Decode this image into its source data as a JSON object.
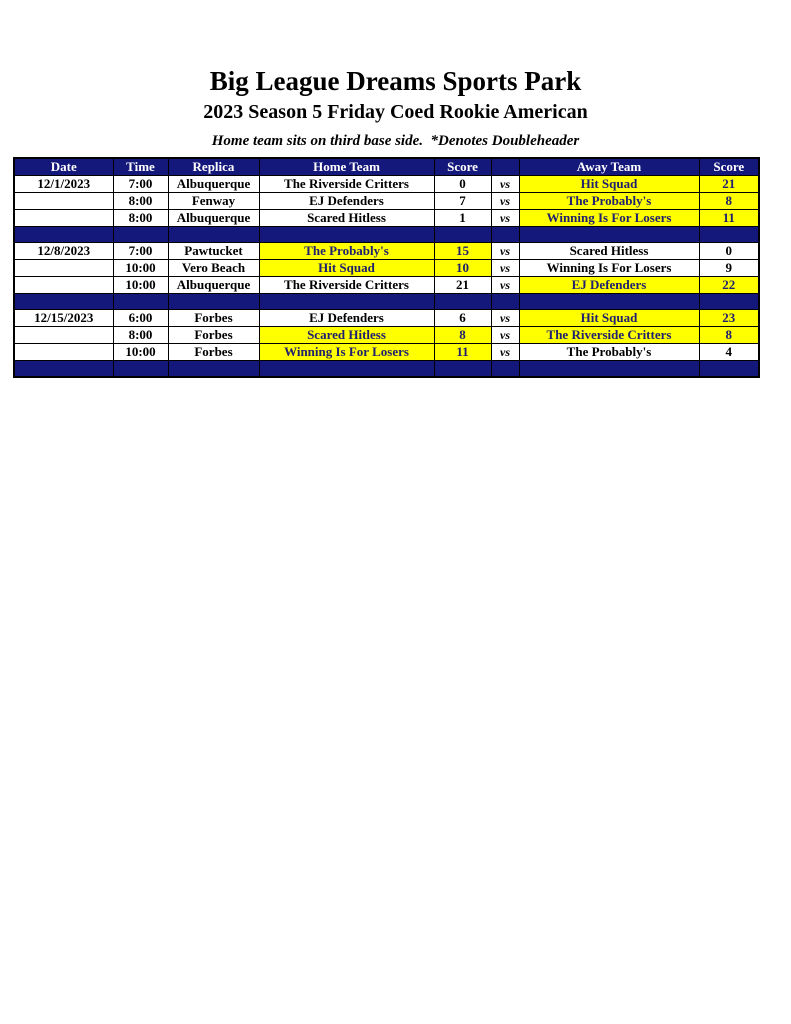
{
  "titles": {
    "main": "Big League Dreams Sports Park",
    "season": "2023 Season 5 Friday Coed Rookie American",
    "note": "Home team sits on third base side.  *Denotes Doubleheader"
  },
  "colors": {
    "header_navy": "#14187b",
    "highlight_yellow": "#ffff00",
    "highlight_text_navy": "#202070",
    "header_text": "#ffffff",
    "body_text": "#000000"
  },
  "table": {
    "headers": [
      "Date",
      "Time",
      "Replica",
      "Home Team",
      "Score",
      "",
      "Away Team",
      "Score"
    ],
    "vs_label": "vs",
    "rows": [
      {
        "type": "game",
        "date": "12/1/2023",
        "time": "7:00",
        "replica": "Albuquerque",
        "home": "The Riverside Critters",
        "home_score": "0",
        "home_highlight": false,
        "away": "Hit Squad",
        "away_score": "21",
        "away_highlight": true
      },
      {
        "type": "game",
        "date": "",
        "time": "8:00",
        "replica": "Fenway",
        "home": "EJ Defenders",
        "home_score": "7",
        "home_highlight": false,
        "away": "The Probably's",
        "away_score": "8",
        "away_highlight": true
      },
      {
        "type": "game",
        "date": "",
        "time": "8:00",
        "replica": "Albuquerque",
        "home": "Scared Hitless",
        "home_score": "1",
        "home_highlight": false,
        "away": "Winning Is For Losers",
        "away_score": "11",
        "away_highlight": true
      },
      {
        "type": "separator"
      },
      {
        "type": "game",
        "date": "12/8/2023",
        "time": "7:00",
        "replica": "Pawtucket",
        "home": "The Probably's",
        "home_score": "15",
        "home_highlight": true,
        "away": "Scared Hitless",
        "away_score": "0",
        "away_highlight": false
      },
      {
        "type": "game",
        "date": "",
        "time": "10:00",
        "replica": "Vero Beach",
        "home": "Hit Squad",
        "home_score": "10",
        "home_highlight": true,
        "away": "Winning Is For Losers",
        "away_score": "9",
        "away_highlight": false
      },
      {
        "type": "game",
        "date": "",
        "time": "10:00",
        "replica": "Albuquerque",
        "home": "The Riverside Critters",
        "home_score": "21",
        "home_highlight": false,
        "away": "EJ Defenders",
        "away_score": "22",
        "away_highlight": true
      },
      {
        "type": "separator"
      },
      {
        "type": "game",
        "date": "12/15/2023",
        "time": "6:00",
        "replica": "Forbes",
        "home": "EJ Defenders",
        "home_score": "6",
        "home_highlight": false,
        "away": "Hit Squad",
        "away_score": "23",
        "away_highlight": true
      },
      {
        "type": "game",
        "date": "",
        "time": "8:00",
        "replica": "Forbes",
        "home": "Scared Hitless",
        "home_score": "8",
        "home_highlight": true,
        "away": "The Riverside Critters",
        "away_score": "8",
        "away_highlight": true
      },
      {
        "type": "game",
        "date": "",
        "time": "10:00",
        "replica": "Forbes",
        "home": "Winning Is For Losers",
        "home_score": "11",
        "home_highlight": true,
        "away": "The Probably's",
        "away_score": "4",
        "away_highlight": false
      },
      {
        "type": "separator"
      }
    ]
  }
}
